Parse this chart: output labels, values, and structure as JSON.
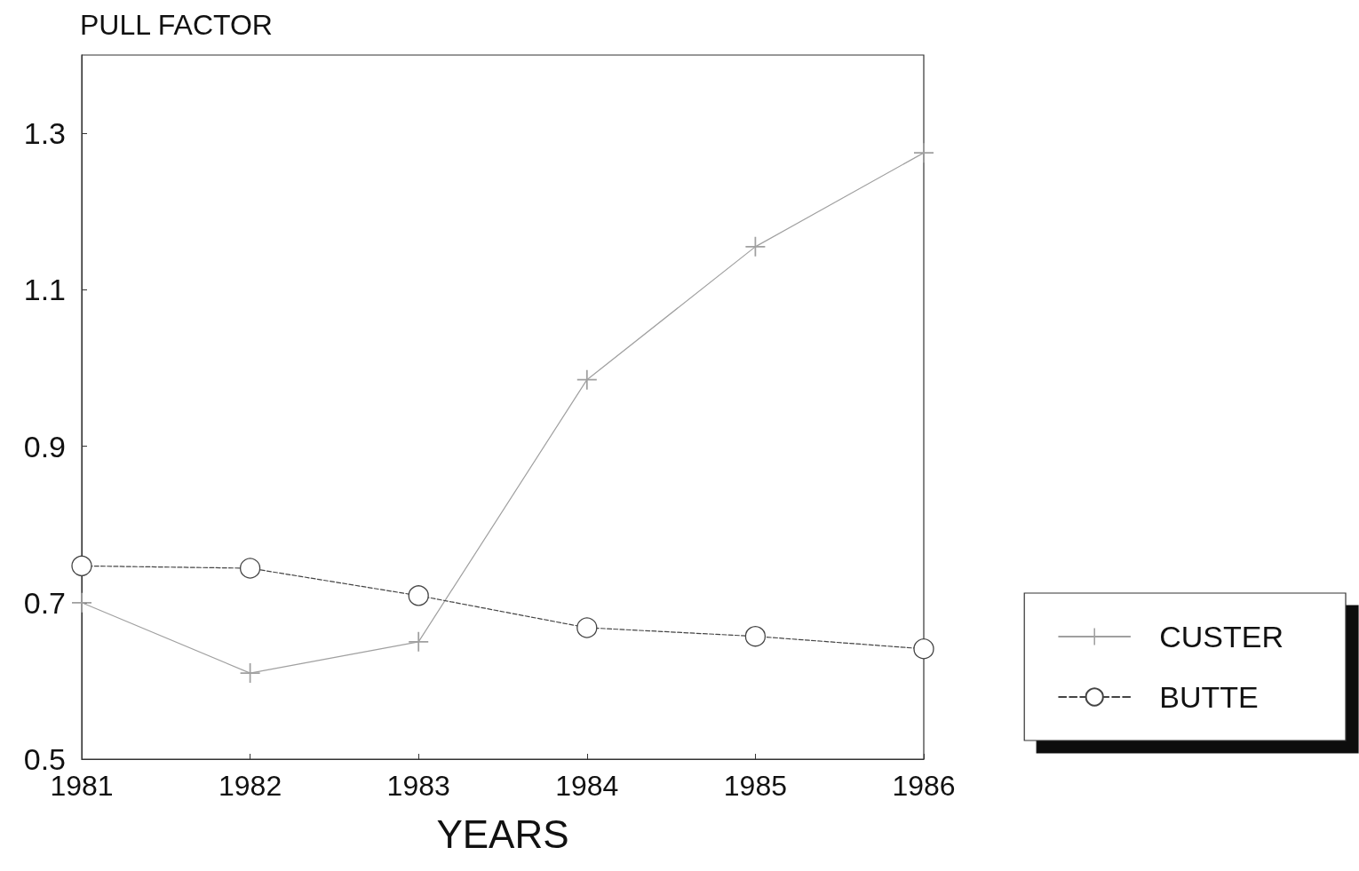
{
  "chart_data": {
    "type": "line",
    "ylabel": "PULL FACTOR",
    "xlabel": "YEARS",
    "x": [
      1981,
      1982,
      1983,
      1984,
      1985,
      1986
    ],
    "xlim": [
      1981,
      1986
    ],
    "xticks": [
      1981,
      1982,
      1983,
      1984,
      1985,
      1986
    ],
    "ylim": [
      0.5,
      1.4
    ],
    "yticks": [
      0.5,
      0.7,
      0.9,
      1.1,
      1.3
    ],
    "grid": false,
    "legend": "right",
    "series": [
      {
        "name": "CUSTER",
        "color": "#a0a0a0",
        "marker": "cross",
        "line_style": "solid",
        "values": [
          0.7,
          0.61,
          0.65,
          0.985,
          1.155,
          1.275
        ]
      },
      {
        "name": "BUTTE",
        "color": "#444444",
        "marker": "circle",
        "line_style": "dashed",
        "values": [
          0.747,
          0.744,
          0.709,
          0.668,
          0.657,
          0.641
        ]
      }
    ]
  }
}
